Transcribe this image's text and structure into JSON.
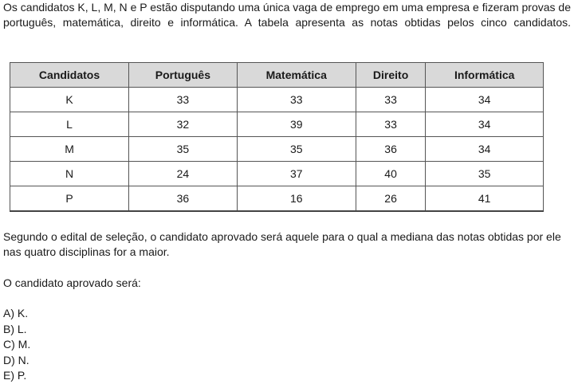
{
  "intro": "Os candidatos K, L, M, N e P estão disputando uma única vaga de emprego em uma empresa e fizeram provas de português, matemática, direito e informática. A tabela apresenta as notas obtidas pelos cinco candidatos.",
  "table": {
    "headers": [
      "Candidatos",
      "Português",
      "Matemática",
      "Direito",
      "Informática"
    ],
    "rows": [
      [
        "K",
        "33",
        "33",
        "33",
        "34"
      ],
      [
        "L",
        "32",
        "39",
        "33",
        "34"
      ],
      [
        "M",
        "35",
        "35",
        "36",
        "34"
      ],
      [
        "N",
        "24",
        "37",
        "40",
        "35"
      ],
      [
        "P",
        "36",
        "16",
        "26",
        "41"
      ]
    ]
  },
  "criterion": "Segundo o edital de seleção, o candidato aprovado será aquele para o qual a mediana das notas obtidas por ele nas quatro disciplinas for a maior.",
  "question": "O candidato aprovado será:",
  "options": [
    "A) K.",
    "B) L.",
    "C) M.",
    "D) N.",
    "E) P."
  ]
}
